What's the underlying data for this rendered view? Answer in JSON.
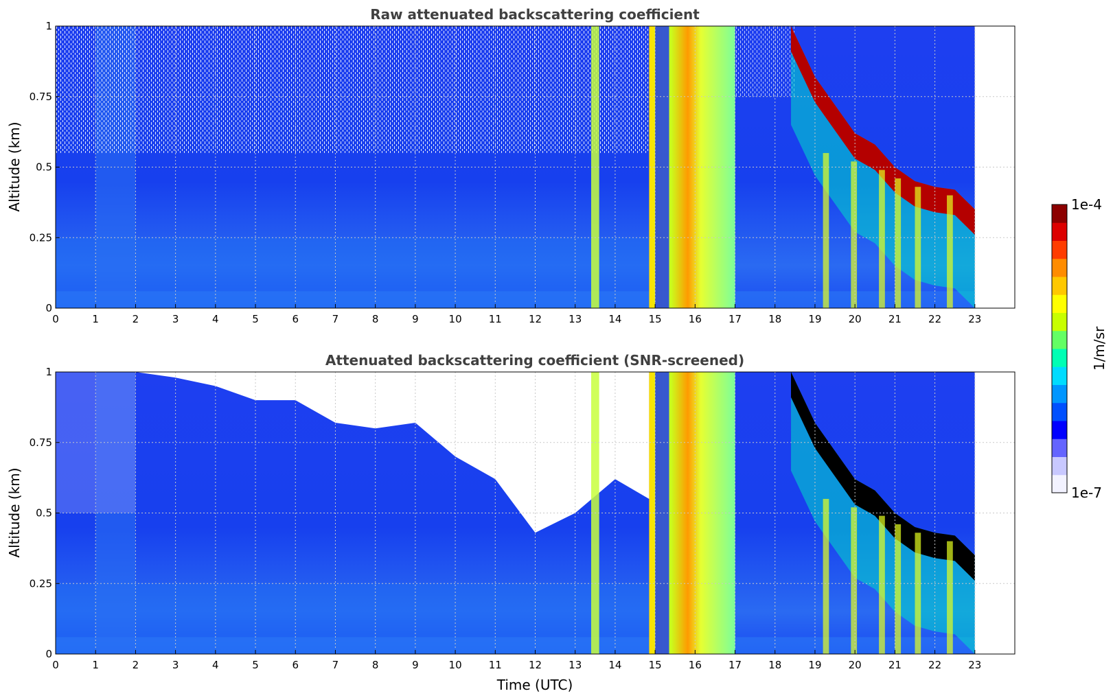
{
  "chart_data": [
    {
      "type": "heatmap",
      "title": "Raw attenuated backscattering coefficient",
      "xlabel": "",
      "ylabel": "Altitude (km)",
      "xlim": [
        0,
        24
      ],
      "ylim": [
        0,
        1
      ],
      "x_ticks": [
        "0",
        "1",
        "2",
        "3",
        "4",
        "5",
        "6",
        "7",
        "8",
        "9",
        "10",
        "11",
        "12",
        "13",
        "14",
        "15",
        "16",
        "17",
        "18",
        "19",
        "20",
        "21",
        "22",
        "23"
      ],
      "y_ticks": [
        {
          "value": 0,
          "label": "0"
        },
        {
          "value": 0.25,
          "label": "0.25"
        },
        {
          "value": 0.5,
          "label": "0.5"
        },
        {
          "value": 0.75,
          "label": "0.75"
        },
        {
          "value": 1,
          "label": "1"
        }
      ],
      "grid": true,
      "data_end_time": 23,
      "features": [
        {
          "kind": "fog_column",
          "t0": 14.85,
          "t1": 17.0,
          "level": "yellow-orange"
        },
        {
          "kind": "stripe",
          "t0": 13.4,
          "t1": 13.6,
          "level": "yellow"
        },
        {
          "kind": "cloud_layer",
          "points": [
            [
              18.4,
              1.0
            ],
            [
              19.0,
              0.82
            ],
            [
              19.5,
              0.72
            ],
            [
              20.0,
              0.62
            ],
            [
              20.5,
              0.58
            ],
            [
              21.0,
              0.5
            ],
            [
              21.5,
              0.45
            ],
            [
              22.0,
              0.43
            ],
            [
              22.5,
              0.42
            ],
            [
              23.0,
              0.35
            ]
          ],
          "level": "dark-red"
        }
      ]
    },
    {
      "type": "heatmap",
      "title": "Attenuated backscattering coefficient (SNR-screened)",
      "xlabel": "Time (UTC)",
      "ylabel": "Altitude (km)",
      "xlim": [
        0,
        24
      ],
      "ylim": [
        0,
        1
      ],
      "x_ticks": [
        "0",
        "1",
        "2",
        "3",
        "4",
        "5",
        "6",
        "7",
        "8",
        "9",
        "10",
        "11",
        "12",
        "13",
        "14",
        "15",
        "16",
        "17",
        "18",
        "19",
        "20",
        "21",
        "22",
        "23"
      ],
      "y_ticks": [
        {
          "value": 0,
          "label": "0"
        },
        {
          "value": 0.25,
          "label": "0.25"
        },
        {
          "value": 0.5,
          "label": "0.5"
        },
        {
          "value": 0.75,
          "label": "0.75"
        },
        {
          "value": 1,
          "label": "1"
        }
      ],
      "grid": true,
      "data_end_time": 23,
      "screened_top": [
        [
          0,
          1.0
        ],
        [
          2,
          1.0
        ],
        [
          3,
          0.98
        ],
        [
          4,
          0.95
        ],
        [
          5,
          0.9
        ],
        [
          6,
          0.9
        ],
        [
          7,
          0.82
        ],
        [
          8,
          0.8
        ],
        [
          9,
          0.82
        ],
        [
          10,
          0.7
        ],
        [
          11,
          0.62
        ],
        [
          12,
          0.43
        ],
        [
          13,
          0.5
        ],
        [
          14,
          0.62
        ],
        [
          14.85,
          0.55
        ]
      ],
      "features": [
        {
          "kind": "fog_column",
          "t0": 14.85,
          "t1": 17.0,
          "level": "yellow-orange"
        },
        {
          "kind": "stripe",
          "t0": 13.4,
          "t1": 13.6,
          "level": "yellow"
        },
        {
          "kind": "cloud_layer",
          "points": [
            [
              18.4,
              1.0
            ],
            [
              19.0,
              0.82
            ],
            [
              19.5,
              0.72
            ],
            [
              20.0,
              0.62
            ],
            [
              20.5,
              0.58
            ],
            [
              21.0,
              0.5
            ],
            [
              21.5,
              0.45
            ],
            [
              22.0,
              0.43
            ],
            [
              22.5,
              0.42
            ],
            [
              23.0,
              0.35
            ]
          ],
          "level": "black"
        }
      ]
    }
  ],
  "colorbar": {
    "label": "1/m/sr",
    "min_label": "1e-7",
    "max_label": "1e-4",
    "colors": [
      "#f2f2ff",
      "#c8c8ff",
      "#6464ff",
      "#0000ff",
      "#0050ff",
      "#0096ff",
      "#00dcff",
      "#00ffb4",
      "#64ff64",
      "#c8ff00",
      "#ffff00",
      "#ffc800",
      "#ff8c00",
      "#ff3c00",
      "#dc0000",
      "#8c0000"
    ]
  },
  "palette": {
    "background_blue": "#1a3cf0",
    "low_blue": "#1f6ef5",
    "fog_yellow": "#e6ff1e",
    "fog_orange": "#ff9600",
    "cloud_red": "#b40000",
    "cloud_black": "#000000",
    "cyan": "#00dcff"
  }
}
